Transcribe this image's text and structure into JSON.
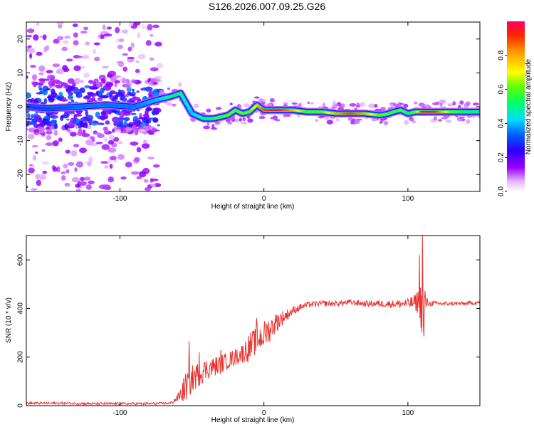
{
  "title": "S126.2026.007.09.25.G26",
  "colors": {
    "background": "#ffffff",
    "axis": "#000000",
    "snr_line": "#e8332f",
    "band_core": "#ff2a2a"
  },
  "chart_data": [
    {
      "type": "heatmap",
      "name": "spectrogram",
      "xlabel": "Height of straight line (km)",
      "ylabel": "Frequency (Hz)",
      "xlim": [
        -165,
        150
      ],
      "ylim": [
        -25,
        25
      ],
      "xticks": [
        -100,
        0,
        100
      ],
      "yticks": [
        -20,
        -10,
        0,
        10,
        20
      ],
      "x_tick_labels": [
        "-100",
        "0",
        "100"
      ],
      "y_tick_labels": [
        "-20",
        "-10",
        "0",
        "10",
        "20"
      ],
      "colorbar": {
        "label": "Normalized spectral amplitude",
        "range": [
          0,
          1
        ],
        "ticks": [
          "0.0",
          "0.2",
          "0.4",
          "0.6",
          "0.8"
        ],
        "colormap": "rainbow (white-violet-blue-cyan-green-yellow-red)"
      },
      "frequency_track": {
        "x": [
          -165,
          -150,
          -130,
          -110,
          -90,
          -75,
          -65,
          -58,
          -50,
          -42,
          -35,
          -25,
          -20,
          -15,
          -10,
          -5,
          0,
          10,
          20,
          30,
          40,
          50,
          60,
          70,
          80,
          85,
          90,
          95,
          100,
          105,
          110,
          115,
          120,
          130,
          140,
          150
        ],
        "freq_hz": [
          0,
          -0.5,
          0,
          0.5,
          0,
          2,
          3,
          4,
          -2,
          -3.5,
          -3.5,
          -2.5,
          -1,
          -2,
          -1.5,
          0.5,
          -1,
          -1,
          -1,
          -1.5,
          -1.5,
          -2,
          -2,
          -2,
          -2.5,
          -2.2,
          -1.5,
          -1,
          -2,
          -1.5,
          -1.5,
          -1.5,
          -1.5,
          -1.5,
          -1.5,
          -1.5
        ],
        "peak_amplitude": [
          0.3,
          0.3,
          0.35,
          0.35,
          0.35,
          0.4,
          0.5,
          0.5,
          0.4,
          0.5,
          0.55,
          0.6,
          0.6,
          0.6,
          0.6,
          0.75,
          0.9,
          0.95,
          0.8,
          0.55,
          0.6,
          0.8,
          0.9,
          0.8,
          0.6,
          0.6,
          0.55,
          0.6,
          0.5,
          0.6,
          0.95,
          0.95,
          0.9,
          0.6,
          0.5,
          0.5
        ],
        "noise_spread_until_x": -72
      }
    },
    {
      "type": "line",
      "name": "snr",
      "xlabel": "Height of straight line (km)",
      "ylabel": "SNR (10 * v/v)",
      "xlim": [
        -165,
        150
      ],
      "ylim": [
        0,
        700
      ],
      "xticks": [
        -100,
        0,
        100
      ],
      "yticks": [
        0,
        200,
        400,
        600
      ],
      "x_tick_labels": [
        "-100",
        "0",
        "100"
      ],
      "y_tick_labels": [
        "0",
        "200",
        "400",
        "600"
      ],
      "series": [
        {
          "name": "SNR",
          "x": [
            -165,
            -140,
            -120,
            -100,
            -80,
            -65,
            -60,
            -55,
            -50,
            -45,
            -40,
            -35,
            -30,
            -25,
            -20,
            -15,
            -10,
            -5,
            0,
            5,
            10,
            15,
            20,
            25,
            30,
            40,
            50,
            60,
            70,
            80,
            90,
            100,
            105,
            108,
            110,
            111,
            112,
            113,
            115,
            120,
            130,
            140,
            150
          ],
          "snr": [
            10,
            10,
            8,
            8,
            8,
            10,
            30,
            70,
            110,
            130,
            150,
            160,
            170,
            185,
            200,
            215,
            240,
            270,
            290,
            320,
            350,
            370,
            390,
            405,
            415,
            420,
            420,
            425,
            420,
            420,
            418,
            420,
            425,
            430,
            400,
            380,
            420,
            425,
            420,
            420,
            420,
            420,
            425
          ],
          "noise_amplitude": [
            5,
            5,
            5,
            5,
            5,
            5,
            15,
            60,
            60,
            50,
            45,
            40,
            40,
            35,
            35,
            40,
            60,
            55,
            60,
            50,
            40,
            25,
            18,
            15,
            12,
            12,
            12,
            12,
            12,
            15,
            15,
            20,
            35,
            60,
            130,
            150,
            80,
            20,
            12,
            10,
            8,
            8,
            8
          ],
          "spikes": [
            [
              -52,
              265
            ],
            [
              -45,
              220
            ],
            [
              -30,
              230
            ],
            [
              -5,
              360
            ],
            [
              110,
              700
            ],
            [
              108,
              620
            ],
            [
              111,
              285
            ]
          ]
        }
      ]
    }
  ]
}
